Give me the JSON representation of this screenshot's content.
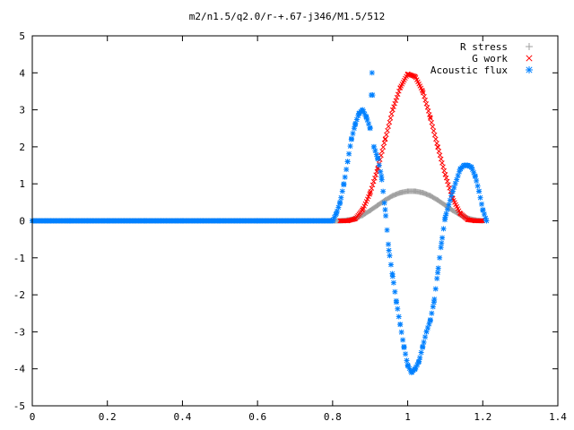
{
  "chart_data": {
    "type": "scatter",
    "title": "m2/n1.5/q2.0/r-+.67-j346/M1.5/512",
    "xlabel": "",
    "ylabel": "",
    "xlim": [
      0,
      1.4
    ],
    "ylim": [
      -5,
      5
    ],
    "x_ticks": [
      "0",
      "0.2",
      "0.4",
      "0.6",
      "0.8",
      "1",
      "1.2",
      "1.4"
    ],
    "y_ticks": [
      "-5",
      "-4",
      "-3",
      "-2",
      "-1",
      "0",
      "1",
      "2",
      "3",
      "4",
      "5"
    ],
    "grid": false,
    "legend_position": "top-right",
    "series": [
      {
        "name": "R stress",
        "marker": "plus",
        "color": "#a0a0a0",
        "x": [
          0.0,
          0.1,
          0.2,
          0.3,
          0.4,
          0.5,
          0.6,
          0.7,
          0.8,
          0.82,
          0.84,
          0.86,
          0.88,
          0.9,
          0.92,
          0.94,
          0.96,
          0.98,
          1.0,
          1.02,
          1.04,
          1.06,
          1.08,
          1.1,
          1.12,
          1.14,
          1.16,
          1.18,
          1.2
        ],
        "y": [
          0.0,
          0.0,
          0.0,
          0.0,
          0.0,
          0.0,
          0.0,
          0.0,
          0.0,
          0.0,
          0.02,
          0.06,
          0.15,
          0.28,
          0.42,
          0.56,
          0.68,
          0.76,
          0.8,
          0.8,
          0.76,
          0.68,
          0.56,
          0.42,
          0.28,
          0.16,
          0.07,
          0.02,
          0.0
        ]
      },
      {
        "name": "G work",
        "marker": "cross",
        "color": "#ff0000",
        "x": [
          0.82,
          0.84,
          0.86,
          0.88,
          0.9,
          0.92,
          0.94,
          0.96,
          0.98,
          1.0,
          1.02,
          1.04,
          1.06,
          1.08,
          1.1,
          1.12,
          1.14,
          1.16,
          1.18,
          1.2
        ],
        "y": [
          0.0,
          0.0,
          0.05,
          0.3,
          0.75,
          1.4,
          2.2,
          3.0,
          3.6,
          3.97,
          3.9,
          3.5,
          2.8,
          2.0,
          1.25,
          0.6,
          0.2,
          0.03,
          0.0,
          0.0
        ]
      },
      {
        "name": "Acoustic flux",
        "marker": "star",
        "color": "#0080ff",
        "x": [
          0.0,
          0.1,
          0.2,
          0.3,
          0.4,
          0.5,
          0.6,
          0.7,
          0.8,
          0.81,
          0.82,
          0.83,
          0.84,
          0.85,
          0.86,
          0.87,
          0.88,
          0.89,
          0.9,
          0.905,
          0.91,
          0.92,
          0.93,
          0.94,
          0.95,
          0.96,
          0.97,
          0.98,
          0.99,
          1.0,
          1.01,
          1.02,
          1.03,
          1.04,
          1.05,
          1.06,
          1.07,
          1.08,
          1.09,
          1.1,
          1.12,
          1.14,
          1.15,
          1.16,
          1.17,
          1.18,
          1.19,
          1.2,
          1.21
        ],
        "y": [
          0.0,
          0.0,
          0.0,
          0.0,
          0.0,
          0.0,
          0.0,
          0.0,
          0.0,
          0.2,
          0.5,
          1.0,
          1.6,
          2.2,
          2.6,
          2.9,
          3.0,
          2.8,
          2.5,
          4.0,
          2.0,
          1.7,
          1.2,
          0.3,
          -0.8,
          -1.5,
          -2.2,
          -2.8,
          -3.4,
          -3.9,
          -4.1,
          -4.0,
          -3.8,
          -3.4,
          -3.0,
          -2.7,
          -2.2,
          -1.4,
          -0.6,
          0.1,
          0.8,
          1.4,
          1.5,
          1.5,
          1.45,
          1.2,
          0.8,
          0.3,
          0.0
        ]
      }
    ]
  }
}
